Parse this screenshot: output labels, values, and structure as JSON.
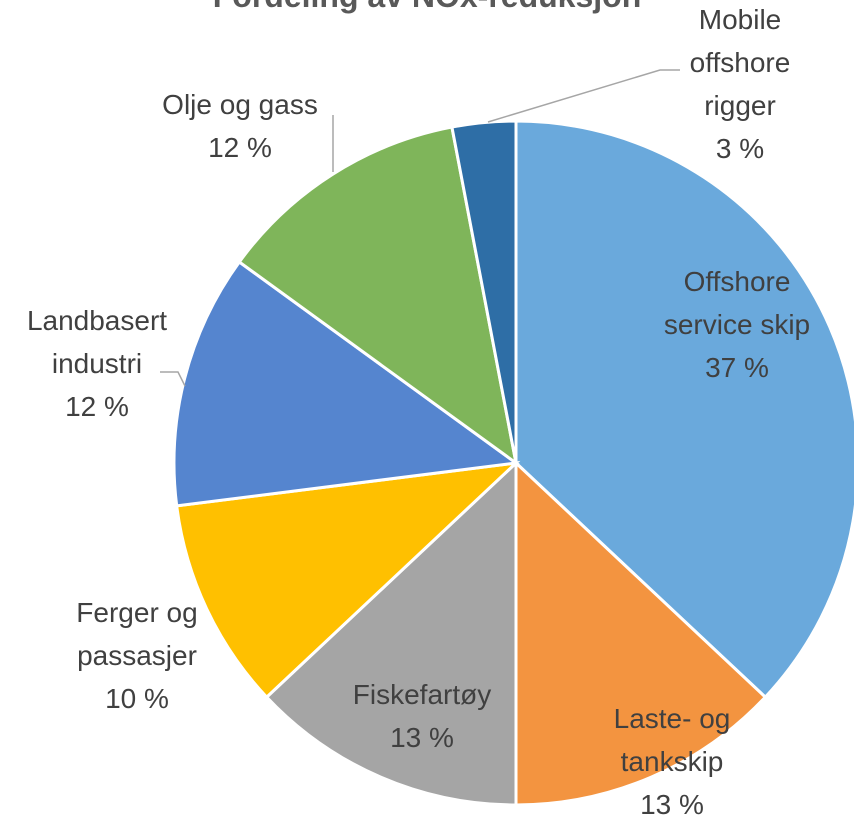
{
  "chart_data": {
    "type": "pie",
    "title": "Fordeling av NOx-reduksjon",
    "categories": [
      "Offshore service skip",
      "Laste- og tankskip",
      "Fiskefartøy",
      "Ferger og passasjer",
      "Landbasert industri",
      "Olje og gass",
      "Mobile offshore rigger"
    ],
    "values": [
      37,
      13,
      13,
      10,
      12,
      12,
      3
    ],
    "value_labels": [
      "37 %",
      "13 %",
      "13 %",
      "10 %",
      "12 %",
      "12 %",
      "3 %"
    ],
    "colors": [
      "#6aa9dc",
      "#f39440",
      "#a5a5a5",
      "#ffc000",
      "#5585cf",
      "#7fb55a",
      "#2e6ea6"
    ]
  }
}
